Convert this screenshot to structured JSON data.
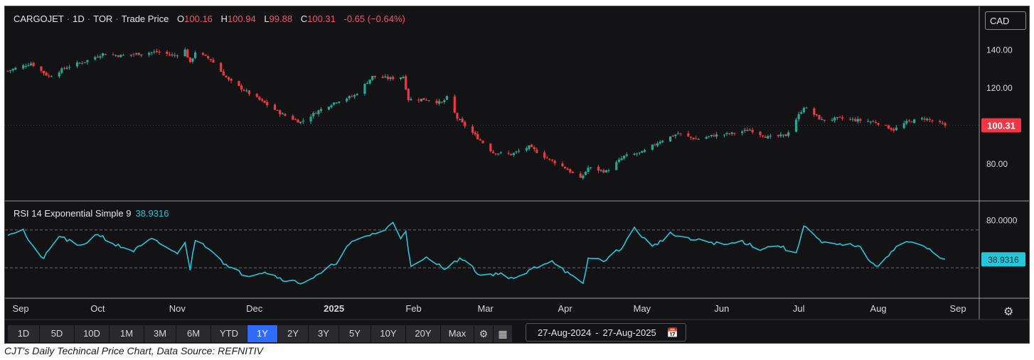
{
  "header": {
    "symbol": "CARGOJET",
    "interval": "1D",
    "exchange": "TOR",
    "price_type": "Trade Price",
    "open_label": "O",
    "open": "100.16",
    "high_label": "H",
    "high": "100.94",
    "low_label": "L",
    "low": "99.88",
    "close_label": "C",
    "close": "100.31",
    "change": "-0.65 (−0.64%)"
  },
  "currency": "CAD",
  "rsi_header": {
    "label": "RSI 14 Exponential Simple 9",
    "value": "38.9316"
  },
  "toolbar": {
    "timeframes": [
      "1D",
      "5D",
      "10D",
      "1M",
      "3M",
      "6M",
      "YTD",
      "1Y",
      "2Y",
      "3Y",
      "5Y",
      "10Y",
      "20Y",
      "Max"
    ],
    "active": "1Y",
    "date_from": "27-Aug-2024",
    "date_to": "27-Aug-2025",
    "icons": [
      "gear-icon",
      "table-icon",
      "calendar-icon",
      "settings-icon"
    ]
  },
  "caption": "CJT's Daily Techincal Price Chart, Data Source: REFNITIV",
  "colors": {
    "up": "#22ab94",
    "down": "#f23645",
    "rsi": "#26c6da",
    "price_tag": "#f23645",
    "rsi_tag": "#26c6da",
    "active_tf": "#2f6bff",
    "background": "#131316"
  },
  "chart_data": [
    {
      "type": "candlestick",
      "price_axis": {
        "ticks": [
          140.0,
          120.0,
          100.0,
          80.0
        ],
        "tick_labels": [
          "140.00",
          "120.00",
          "100.00",
          "80.00"
        ],
        "ylim": [
          62,
          148
        ]
      },
      "last_price": 100.31,
      "last_price_label": "100.31",
      "x_axis": {
        "tick_labels": [
          "Sep",
          "Oct",
          "Nov",
          "Dec",
          "2025",
          "Feb",
          "Mar",
          "Apr",
          "May",
          "Jun",
          "Jul",
          "Aug",
          "Sep"
        ],
        "start": "2024-08-27",
        "end": "2025-08-27"
      },
      "anchors": [
        [
          "2024-08-27",
          129
        ],
        [
          "2024-09-05",
          133
        ],
        [
          "2024-09-12",
          126
        ],
        [
          "2024-09-19",
          131
        ],
        [
          "2024-09-26",
          134
        ],
        [
          "2024-10-03",
          138
        ],
        [
          "2024-10-10",
          137
        ],
        [
          "2024-10-17",
          138
        ],
        [
          "2024-10-24",
          139
        ],
        [
          "2024-10-31",
          137
        ],
        [
          "2024-11-04",
          140
        ],
        [
          "2024-11-06",
          133
        ],
        [
          "2024-11-08",
          139
        ],
        [
          "2024-11-14",
          135
        ],
        [
          "2024-11-21",
          124
        ],
        [
          "2024-11-28",
          118
        ],
        [
          "2024-12-05",
          112
        ],
        [
          "2024-12-12",
          106
        ],
        [
          "2024-12-19",
          102
        ],
        [
          "2024-12-26",
          108
        ],
        [
          "2025-01-02",
          113
        ],
        [
          "2025-01-09",
          116
        ],
        [
          "2025-01-16",
          126
        ],
        [
          "2025-01-23",
          125
        ],
        [
          "2025-01-28",
          126
        ],
        [
          "2025-01-30",
          114
        ],
        [
          "2025-02-06",
          114
        ],
        [
          "2025-02-12",
          112
        ],
        [
          "2025-02-14",
          115
        ],
        [
          "2025-02-18",
          104
        ],
        [
          "2025-02-25",
          95
        ],
        [
          "2025-03-04",
          86
        ],
        [
          "2025-03-11",
          85
        ],
        [
          "2025-03-18",
          89
        ],
        [
          "2025-03-25",
          83
        ],
        [
          "2025-04-01",
          78
        ],
        [
          "2025-04-07",
          72
        ],
        [
          "2025-04-10",
          78
        ],
        [
          "2025-04-17",
          76
        ],
        [
          "2025-04-24",
          84
        ],
        [
          "2025-05-01",
          86
        ],
        [
          "2025-05-08",
          92
        ],
        [
          "2025-05-15",
          96
        ],
        [
          "2025-05-22",
          93
        ],
        [
          "2025-05-29",
          95
        ],
        [
          "2025-06-05",
          96
        ],
        [
          "2025-06-12",
          98
        ],
        [
          "2025-06-19",
          94
        ],
        [
          "2025-06-26",
          95
        ],
        [
          "2025-07-03",
          110
        ],
        [
          "2025-07-10",
          103
        ],
        [
          "2025-07-17",
          104
        ],
        [
          "2025-07-24",
          103
        ],
        [
          "2025-07-31",
          102
        ],
        [
          "2025-08-07",
          98
        ],
        [
          "2025-08-12",
          102
        ],
        [
          "2025-08-19",
          104
        ],
        [
          "2025-08-27",
          100.31
        ]
      ]
    },
    {
      "type": "line",
      "name": "RSI 14 Exponential Simple 9",
      "y_axis": {
        "ticks": [
          80
        ],
        "tick_labels": [
          "80.0000"
        ],
        "ylim": [
          0,
          100
        ],
        "dashed_levels": [
          70,
          30
        ]
      },
      "last_value": 38.9316,
      "last_value_label": "38.9316",
      "anchors": [
        [
          "2024-08-27",
          66
        ],
        [
          "2024-09-02",
          70
        ],
        [
          "2024-09-05",
          54
        ],
        [
          "2024-09-10",
          40
        ],
        [
          "2024-09-16",
          64
        ],
        [
          "2024-09-24",
          52
        ],
        [
          "2024-10-01",
          66
        ],
        [
          "2024-10-08",
          54
        ],
        [
          "2024-10-15",
          48
        ],
        [
          "2024-10-22",
          60
        ],
        [
          "2024-10-29",
          50
        ],
        [
          "2024-11-01",
          44
        ],
        [
          "2024-11-04",
          58
        ],
        [
          "2024-11-06",
          28
        ],
        [
          "2024-11-08",
          60
        ],
        [
          "2024-11-14",
          50
        ],
        [
          "2024-11-21",
          30
        ],
        [
          "2024-11-28",
          22
        ],
        [
          "2024-12-05",
          26
        ],
        [
          "2024-12-12",
          18
        ],
        [
          "2024-12-19",
          14
        ],
        [
          "2024-12-26",
          22
        ],
        [
          "2025-01-02",
          36
        ],
        [
          "2025-01-07",
          55
        ],
        [
          "2025-01-14",
          64
        ],
        [
          "2025-01-21",
          70
        ],
        [
          "2025-01-24",
          78
        ],
        [
          "2025-01-27",
          62
        ],
        [
          "2025-01-29",
          70
        ],
        [
          "2025-01-31",
          30
        ],
        [
          "2025-02-06",
          40
        ],
        [
          "2025-02-13",
          30
        ],
        [
          "2025-02-20",
          40
        ],
        [
          "2025-02-27",
          22
        ],
        [
          "2025-03-06",
          24
        ],
        [
          "2025-03-13",
          18
        ],
        [
          "2025-03-20",
          30
        ],
        [
          "2025-03-27",
          38
        ],
        [
          "2025-04-03",
          22
        ],
        [
          "2025-04-08",
          12
        ],
        [
          "2025-04-10",
          40
        ],
        [
          "2025-04-17",
          38
        ],
        [
          "2025-04-24",
          54
        ],
        [
          "2025-04-28",
          72
        ],
        [
          "2025-05-05",
          52
        ],
        [
          "2025-05-12",
          66
        ],
        [
          "2025-05-19",
          60
        ],
        [
          "2025-05-26",
          58
        ],
        [
          "2025-06-02",
          54
        ],
        [
          "2025-06-09",
          58
        ],
        [
          "2025-06-16",
          50
        ],
        [
          "2025-06-23",
          54
        ],
        [
          "2025-06-30",
          44
        ],
        [
          "2025-07-03",
          76
        ],
        [
          "2025-07-10",
          56
        ],
        [
          "2025-07-17",
          54
        ],
        [
          "2025-07-24",
          54
        ],
        [
          "2025-07-31",
          30
        ],
        [
          "2025-08-07",
          50
        ],
        [
          "2025-08-12",
          58
        ],
        [
          "2025-08-19",
          52
        ],
        [
          "2025-08-27",
          38.9316
        ]
      ]
    }
  ]
}
